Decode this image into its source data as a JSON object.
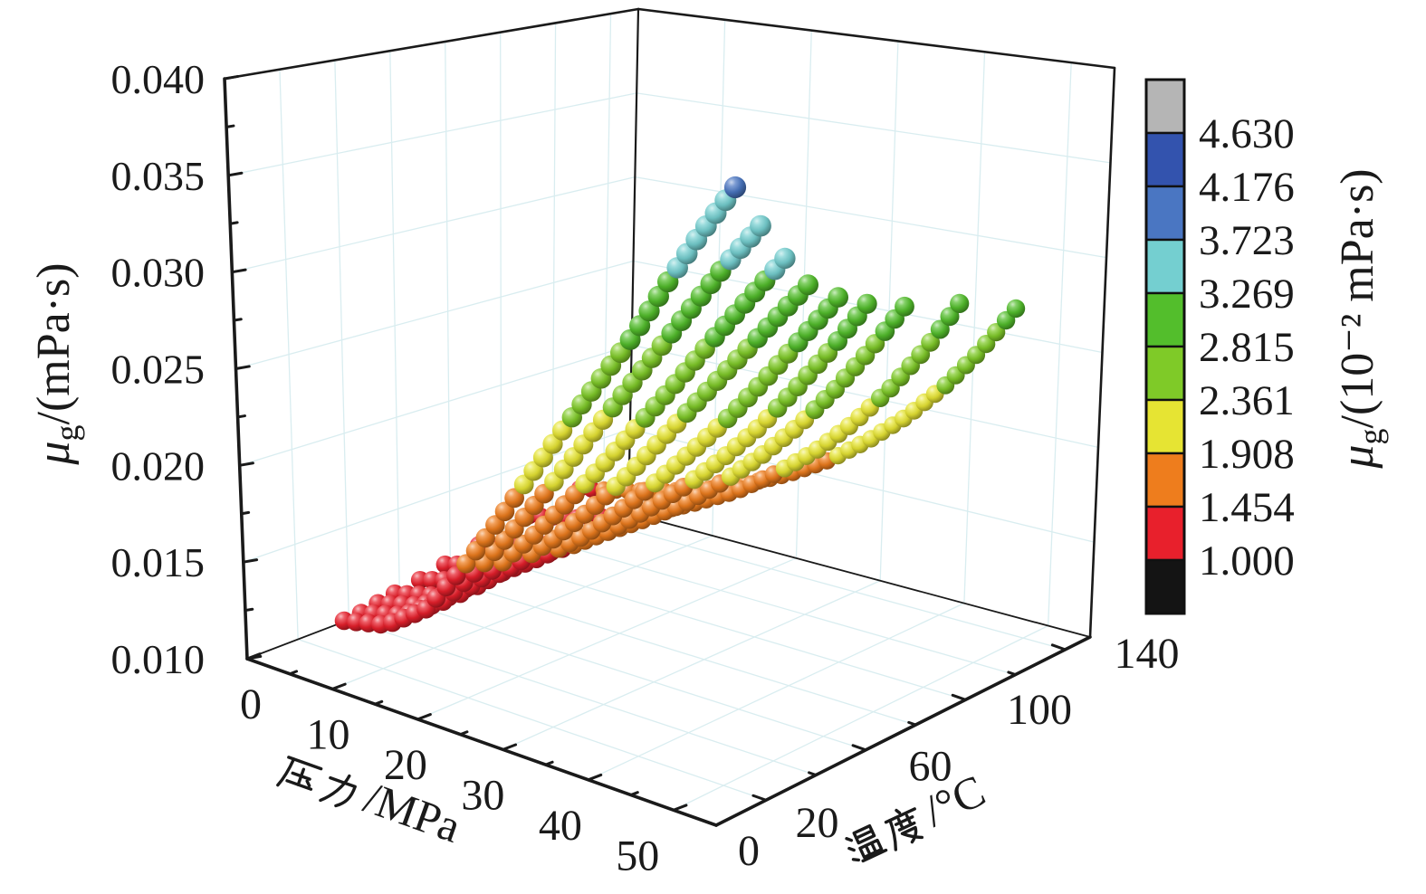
{
  "figure": {
    "background": "#ffffff",
    "z_axis": {
      "title_mu": "μ",
      "title_sub": "g",
      "title_rest": "/(mPa·s)",
      "tick_labels": [
        "0.010",
        "0.015",
        "0.020",
        "0.025",
        "0.030",
        "0.035",
        "0.040"
      ]
    },
    "x_axis": {
      "title_cjk": "压力",
      "title_rest": "/MPa",
      "tick_labels": [
        "0",
        "10",
        "20",
        "30",
        "40",
        "50"
      ]
    },
    "y_axis": {
      "title_cjk": "温度",
      "title_rest": "/°C",
      "tick_labels": [
        "0",
        "20",
        "60",
        "100",
        "140"
      ]
    },
    "colorbar": {
      "title_mu": "μ",
      "title_sub": "g",
      "title_rest": "/(10⁻² mPa·s)",
      "labels": [
        "4.630",
        "4.176",
        "3.723",
        "3.269",
        "2.815",
        "2.361",
        "1.908",
        "1.454",
        "1.000"
      ],
      "segment_colors_top_to_bottom": [
        "#b5b5b5",
        "#3353ae",
        "#4a76c2",
        "#74cfd0",
        "#53be2c",
        "#7fca28",
        "#e6e433",
        "#ee7d1d",
        "#e8202c",
        "#141414"
      ]
    }
  },
  "chart_data": {
    "type": "scatter",
    "subtype": "scatter3d-spheres",
    "xlabel": "压力/MPa",
    "ylabel": "温度/°C",
    "zlabel": "μg/(mPa·s)",
    "colorbar_label": "μg/(10⁻² mPa·s)",
    "x_range_MPa": [
      0,
      55
    ],
    "y_range_C": [
      0,
      150
    ],
    "z_range_mPas": [
      0.01,
      0.04
    ],
    "x_ticks_MPa": [
      0,
      10,
      20,
      30,
      40,
      50
    ],
    "x_minor_ticks_MPa": [
      5,
      15,
      25,
      35,
      45
    ],
    "y_ticks_C": [
      0,
      20,
      60,
      100,
      140
    ],
    "y_minor_ticks_C": [
      40,
      80,
      120
    ],
    "z_ticks_mPas": [
      0.01,
      0.015,
      0.02,
      0.025,
      0.03,
      0.035,
      0.04
    ],
    "grid": true,
    "legend_position": "right-colorbar",
    "color_scale": {
      "unit": "10⁻² mPa·s",
      "boundaries_low_to_high": [
        1.0,
        1.454,
        1.908,
        2.361,
        2.815,
        3.269,
        3.723,
        4.176,
        4.63
      ],
      "band_colors_low_to_high": [
        "#141414",
        "#e8202c",
        "#ee7d1d",
        "#e6e433",
        "#7fca28",
        "#53be2c",
        "#74cfd0",
        "#4a76c2",
        "#3353ae",
        "#b5b5b5"
      ]
    },
    "pressure_anchors_MPa": [
      0.1,
      5,
      10,
      15,
      20,
      25,
      30,
      35,
      40,
      45,
      50,
      55
    ],
    "series": [
      {
        "temperature_C": 0,
        "viscosity_mPas": [
          0.0104,
          0.0107,
          0.012,
          0.0145,
          0.0173,
          0.0202,
          0.0231,
          0.0259,
          0.0287,
          0.0318,
          0.0348,
          0.0376
        ]
      },
      {
        "temperature_C": 10,
        "viscosity_mPas": [
          0.0106,
          0.011,
          0.0122,
          0.0144,
          0.0169,
          0.0195,
          0.0222,
          0.0249,
          0.0276,
          0.0303,
          0.033,
          0.0355
        ]
      },
      {
        "temperature_C": 20,
        "viscosity_mPas": [
          0.0109,
          0.0113,
          0.0124,
          0.0143,
          0.0164,
          0.0187,
          0.0211,
          0.0236,
          0.0261,
          0.0287,
          0.0312,
          0.0337
        ]
      },
      {
        "temperature_C": 30,
        "viscosity_mPas": [
          0.0112,
          0.0116,
          0.0126,
          0.0142,
          0.016,
          0.018,
          0.0202,
          0.0226,
          0.025,
          0.0274,
          0.0298,
          0.0322
        ]
      },
      {
        "temperature_C": 45,
        "viscosity_mPas": [
          0.0116,
          0.0121,
          0.013,
          0.0143,
          0.0158,
          0.0176,
          0.0196,
          0.0217,
          0.0239,
          0.0263,
          0.0288,
          0.0313
        ]
      },
      {
        "temperature_C": 60,
        "viscosity_mPas": [
          0.0121,
          0.0126,
          0.0134,
          0.0145,
          0.0158,
          0.0174,
          0.0191,
          0.021,
          0.0231,
          0.0255,
          0.028,
          0.0307
        ]
      },
      {
        "temperature_C": 80,
        "viscosity_mPas": [
          0.0127,
          0.0132,
          0.0139,
          0.0148,
          0.016,
          0.0173,
          0.0189,
          0.0207,
          0.0227,
          0.025,
          0.0275,
          0.0302
        ]
      },
      {
        "temperature_C": 110,
        "viscosity_mPas": [
          0.0136,
          0.014,
          0.0146,
          0.0153,
          0.0163,
          0.0174,
          0.0188,
          0.0204,
          0.0223,
          0.0245,
          0.027,
          0.0298
        ]
      },
      {
        "temperature_C": 140,
        "viscosity_mPas": [
          0.0144,
          0.0148,
          0.0153,
          0.0159,
          0.0167,
          0.0177,
          0.0189,
          0.0204,
          0.0221,
          0.0241,
          0.0264,
          0.029
        ]
      }
    ]
  }
}
